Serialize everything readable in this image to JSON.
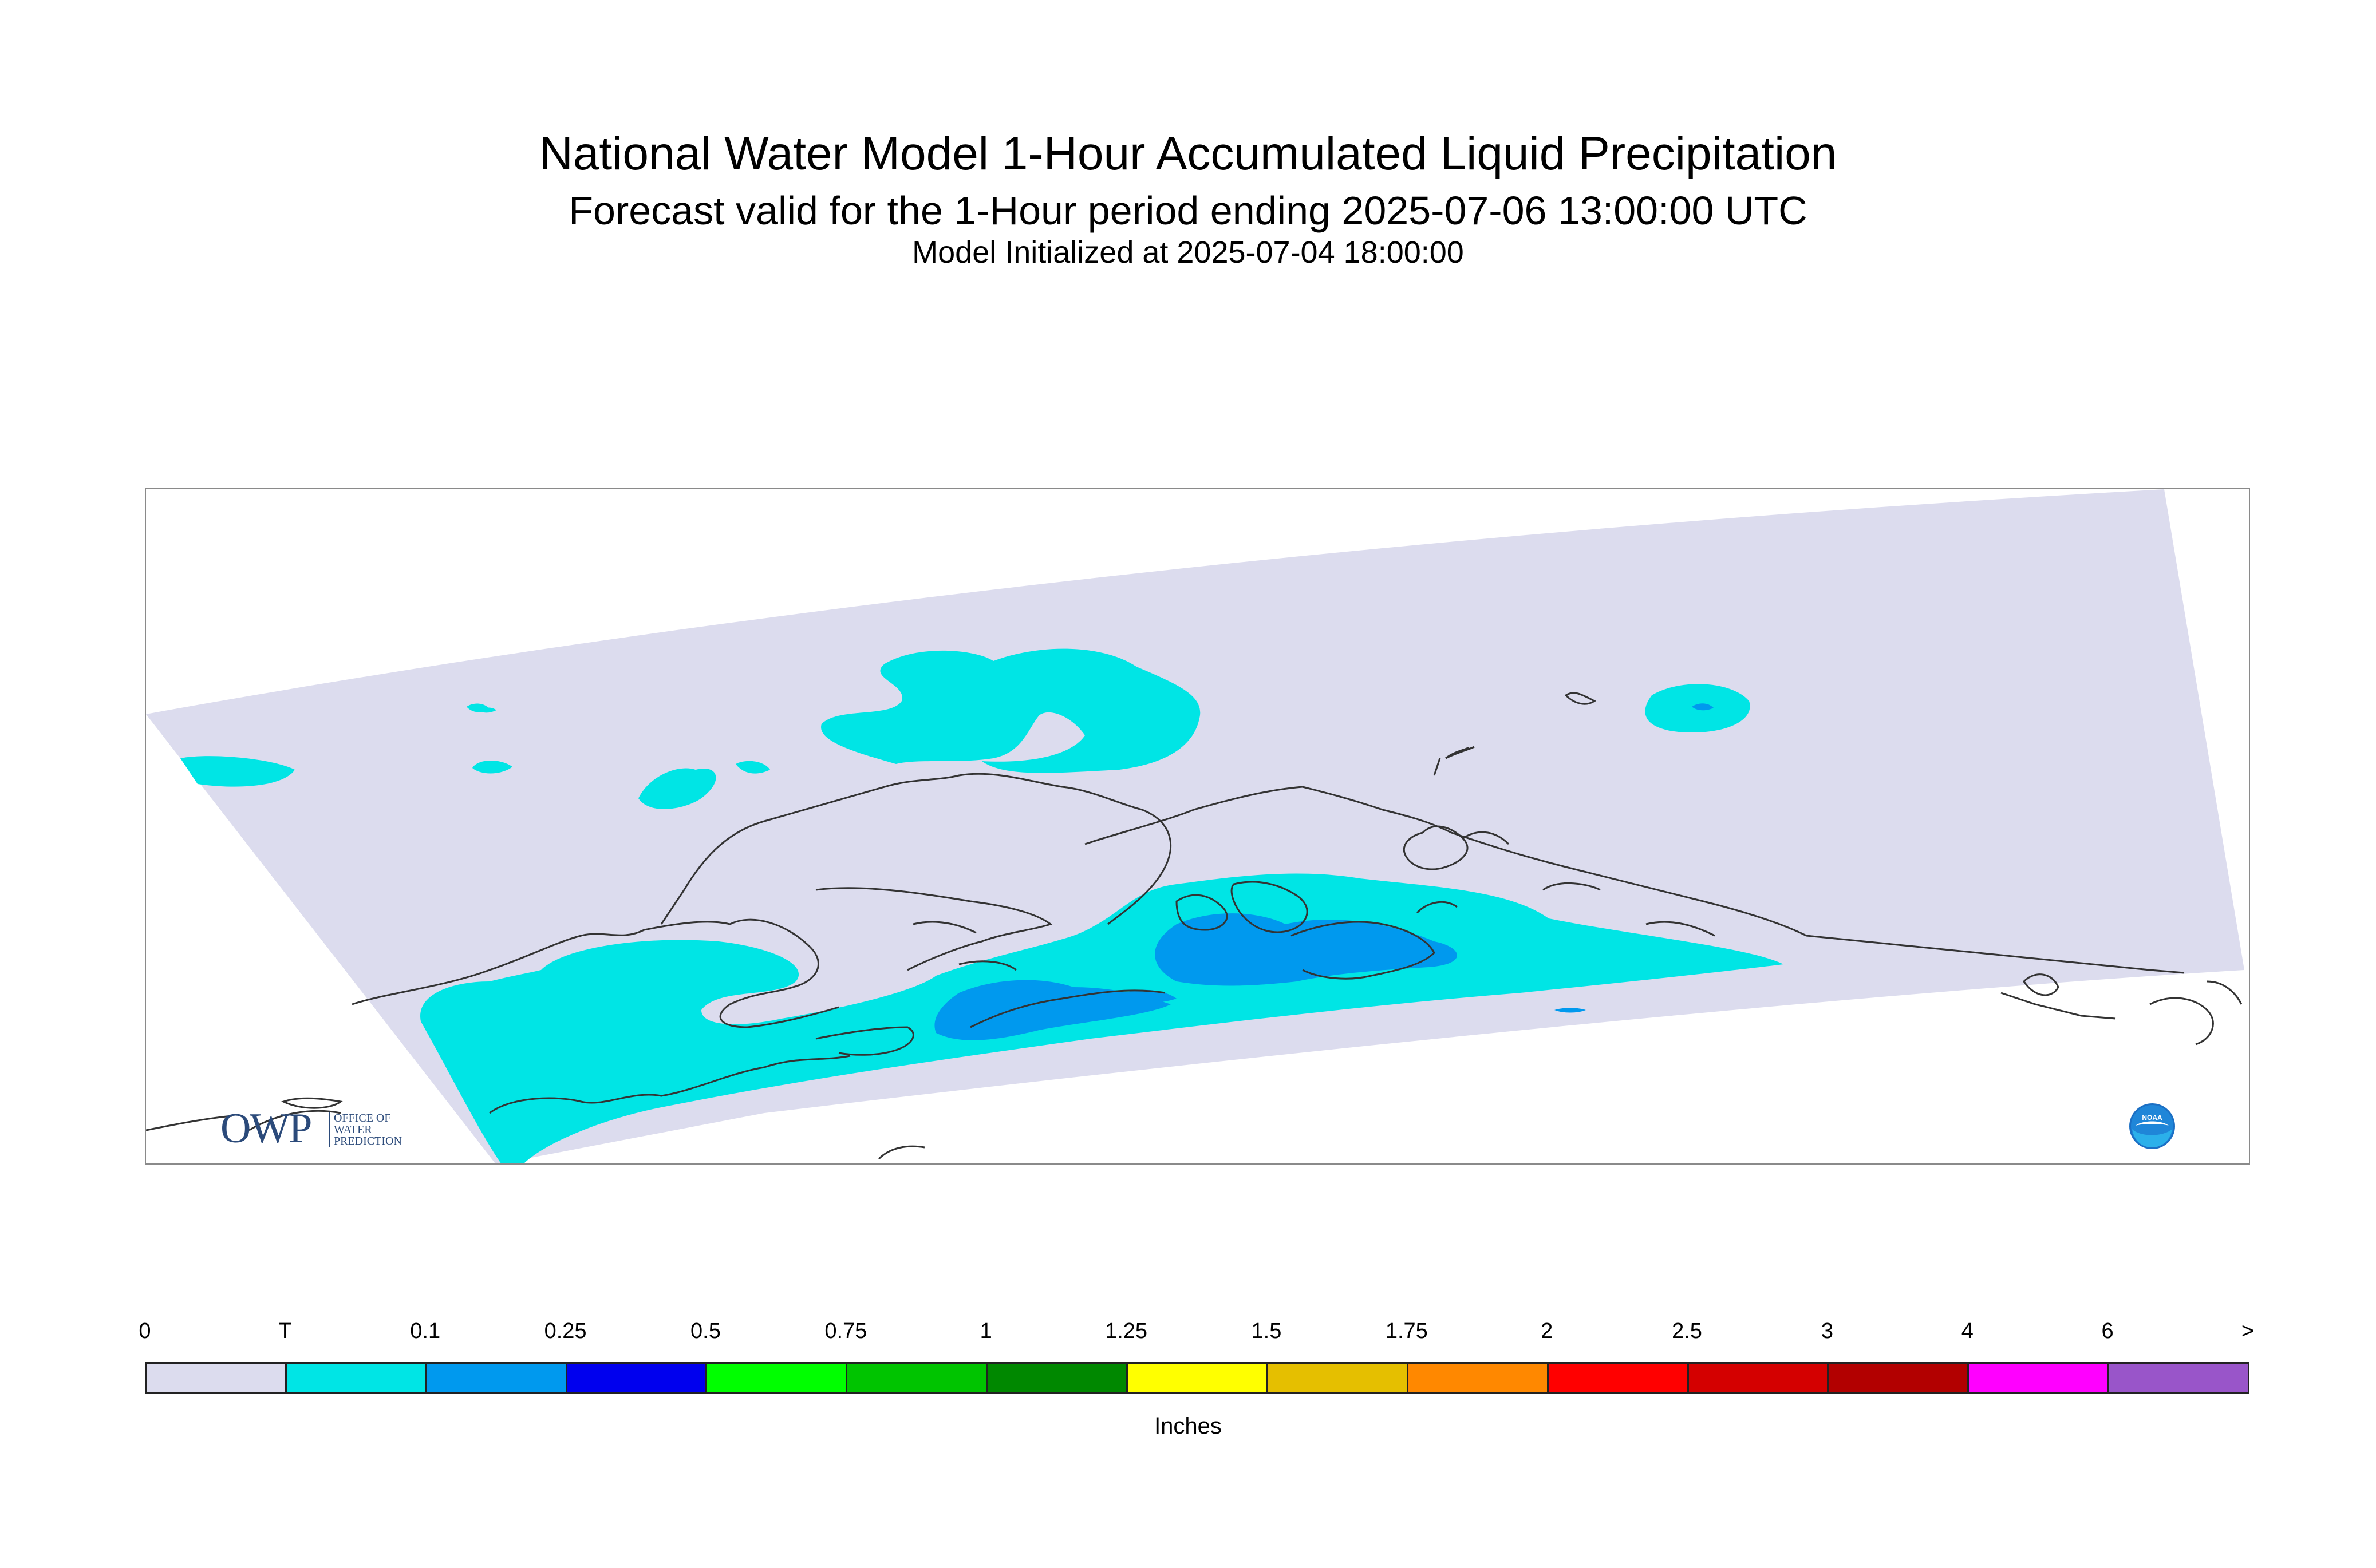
{
  "header": {
    "title": "National Water Model 1-Hour Accumulated Liquid Precipitation",
    "subtitle": "Forecast valid for the 1-Hour period ending 2025-07-06 13:00:00 UTC",
    "init_line": "Model Initialized at 2025-07-04 18:00:00"
  },
  "logos": {
    "owp_letters": "OWP",
    "owp_sub": [
      "OFFICE OF",
      "WATER",
      "PREDICTION"
    ],
    "noaa_text": "NOAA"
  },
  "legend": {
    "units": "Inches",
    "ticks": [
      "0",
      "T",
      "0.1",
      "0.25",
      "0.5",
      "0.75",
      "1",
      "1.25",
      "1.5",
      "1.75",
      "2",
      "2.5",
      "3",
      "4",
      "6",
      ">"
    ],
    "colors": [
      "#dcdcee",
      "#00e5e5",
      "#0099ee",
      "#0000ee",
      "#00ff00",
      "#00c400",
      "#008800",
      "#ffff00",
      "#e5bf00",
      "#ff8800",
      "#ff0000",
      "#d40000",
      "#b20000",
      "#ff00ff",
      "#9955c9"
    ]
  },
  "map": {
    "domain_fill": "#dcdcee",
    "trace_color": "#00e5e5",
    "light_color": "#0099ee",
    "coast_color": "#333333"
  }
}
